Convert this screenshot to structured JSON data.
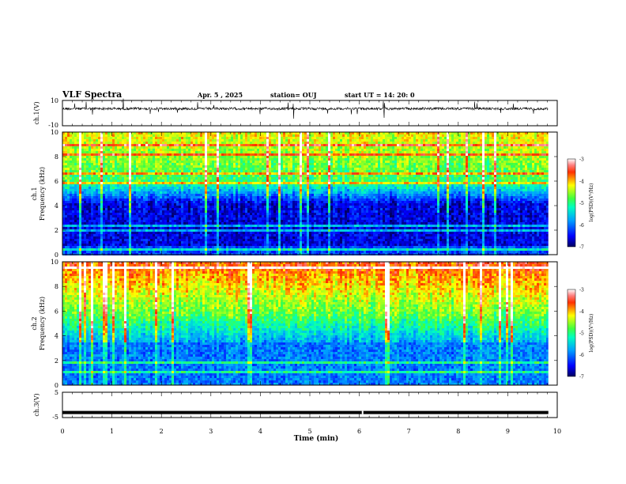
{
  "header": {
    "title": "VLF Spectra",
    "date": "Apr. 5 , 2025",
    "station": "station= OUJ",
    "start": "start UT = 14: 20: 0"
  },
  "chart_data": [
    {
      "type": "line",
      "name": "ch1-waveform",
      "ylabel": "ch.1(V)",
      "ylim": [
        -10,
        10
      ],
      "yticks": [
        "10",
        "-10"
      ],
      "xlim": [
        0,
        10
      ],
      "baseline": 3.5
    },
    {
      "type": "heatmap",
      "name": "ch1-spectrogram",
      "ylabel_top": "ch.1",
      "ylabel": "Frequency (kHz)",
      "ylim": [
        0,
        10
      ],
      "yticks": [
        "0",
        "2",
        "4",
        "6",
        "8",
        "10"
      ],
      "xlim": [
        0,
        10
      ],
      "colorbar": {
        "label": "log(PSD)(V²/Hz)",
        "ticks": [
          "-3",
          "-4",
          "-5",
          "-6",
          "-7"
        ],
        "range": [
          -7,
          -3
        ]
      }
    },
    {
      "type": "heatmap",
      "name": "ch2-spectrogram",
      "ylabel_top": "ch.2",
      "ylabel": "Frequency (kHz)",
      "ylim": [
        0,
        10
      ],
      "yticks": [
        "0",
        "2",
        "4",
        "6",
        "8",
        "10"
      ],
      "xlim": [
        0,
        10
      ],
      "colorbar": {
        "label": "log(PSD)(V²/Hz)",
        "ticks": [
          "-3",
          "-4",
          "-5",
          "-6",
          "-7"
        ],
        "range": [
          -7,
          -3
        ]
      }
    },
    {
      "type": "line",
      "name": "ch3-waveform",
      "ylabel": "ch.3(V)",
      "ylim": [
        -5,
        5
      ],
      "yticks": [
        "5",
        "-5"
      ],
      "xlim": [
        0,
        10
      ],
      "baseline": -3
    }
  ],
  "xaxis": {
    "label": "Time (min)",
    "ticks": [
      "0",
      "1",
      "2",
      "3",
      "4",
      "5",
      "6",
      "7",
      "8",
      "9",
      "10"
    ],
    "range": [
      0,
      10
    ],
    "data_end": 9.82
  }
}
